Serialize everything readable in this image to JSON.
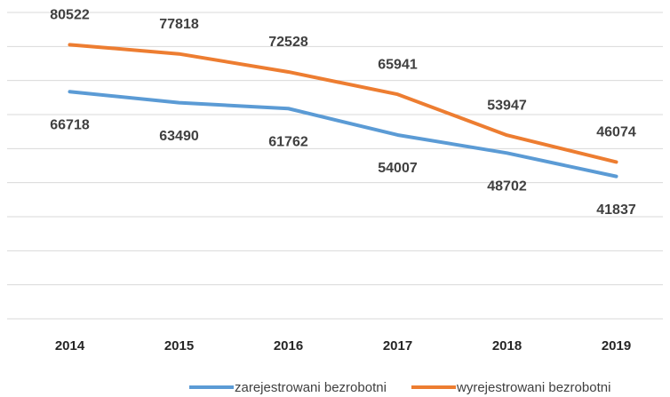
{
  "chart_data": {
    "type": "line",
    "categories": [
      "2014",
      "2015",
      "2016",
      "2017",
      "2018",
      "2019"
    ],
    "series": [
      {
        "name": "zarejestrowani bezrobotni",
        "color": "#5b9bd5",
        "values": [
          66718,
          63490,
          61762,
          54007,
          48702,
          41837
        ]
      },
      {
        "name": "wyrejestrowani bezrobotni",
        "color": "#ed7d31",
        "values": [
          80522,
          77818,
          72528,
          65941,
          53947,
          46074
        ]
      }
    ],
    "ylim": [
      0,
      90000
    ],
    "yticks": [
      0,
      10000,
      20000,
      30000,
      40000,
      50000,
      60000,
      70000,
      80000,
      90000
    ],
    "grid": true,
    "legend": "bottom"
  }
}
